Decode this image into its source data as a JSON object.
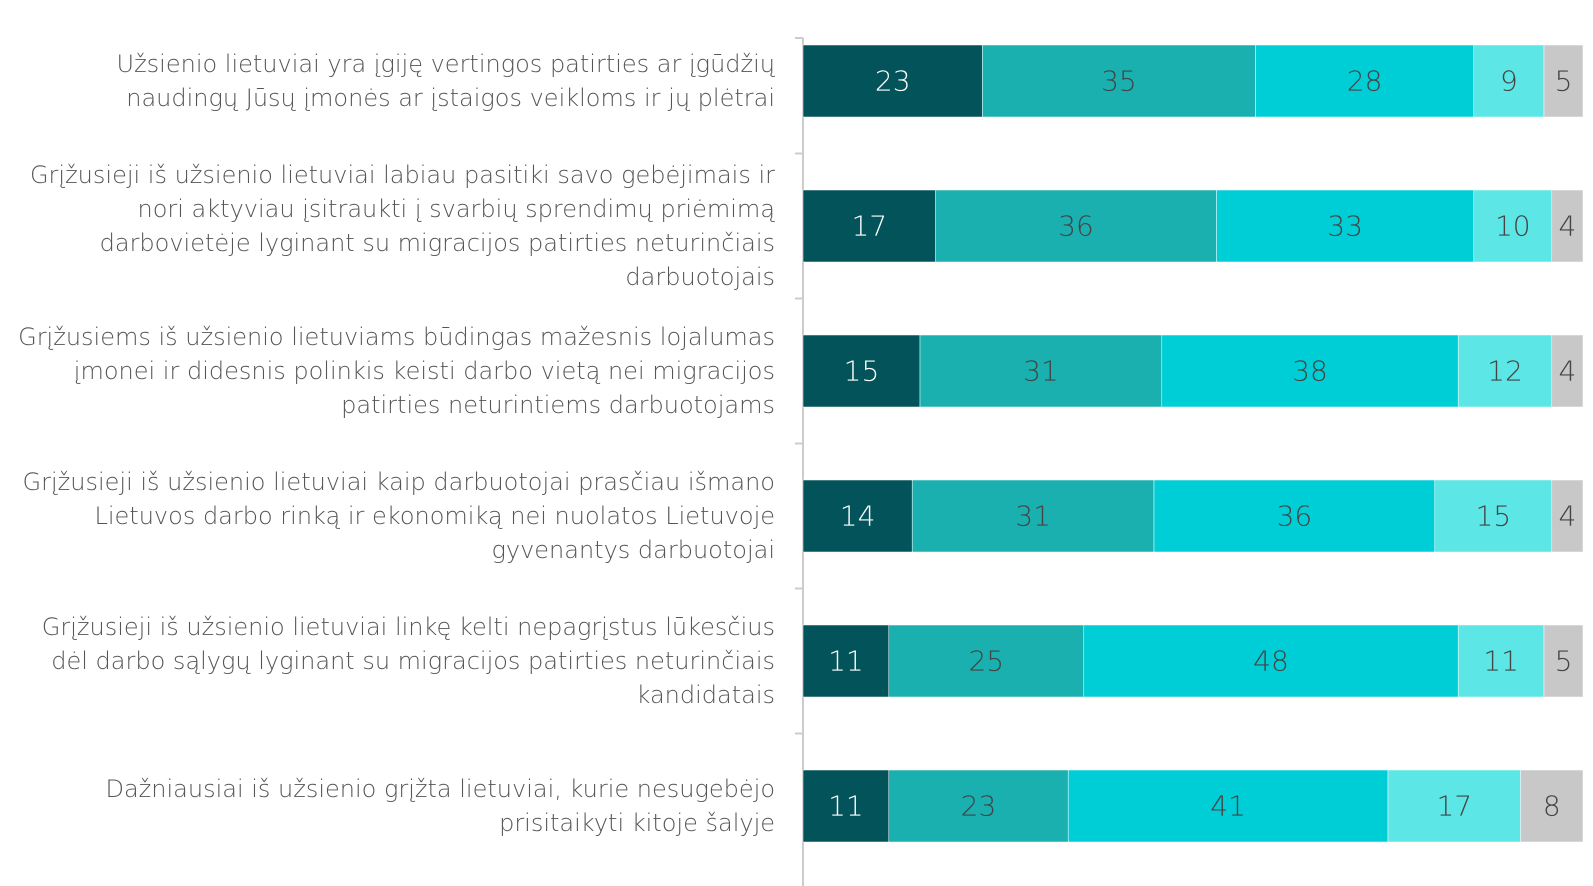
{
  "chart_data": {
    "type": "stacked-barh",
    "categories": [
      "Užsienio lietuviai yra įgiję vertingos patirties ar įgūdžių naudingų Jūsų įmonės ar įstaigos veikloms ir jų plėtrai",
      "Grįžusieji iš užsienio lietuviai labiau pasitiki savo gebėjimais ir nori aktyviau įsitraukti į svarbių sprendimų priėmimą darbovietėje lyginant su migracijos patirties neturinčiais darbuotojais",
      "Grįžusiems iš užsienio lietuviams būdingas mažesnis lojalumas įmonei ir didesnis polinkis keisti darbo vietą nei migracijos patirties neturintiems darbuotojams",
      "Grįžusieji iš užsienio lietuviai kaip darbuotojai prasčiau išmano Lietuvos darbo rinką ir ekonomiką nei nuolatos Lietuvoje gyvenantys darbuotojai",
      "Grįžusieji iš užsienio lietuviai linkę kelti nepagrįstus lūkesčius dėl darbo sąlygų lyginant su migracijos patirties neturinčiais kandidatais",
      "Dažniausiai iš užsienio grįžta lietuviai, kurie nesugebėjo prisitaikyti kitoje šalyje"
    ],
    "series": [
      {
        "color": "#03535a",
        "values": [
          23,
          17,
          15,
          14,
          11,
          11
        ]
      },
      {
        "color": "#1ab0b0",
        "values": [
          35,
          36,
          31,
          31,
          25,
          23
        ]
      },
      {
        "color": "#00ced6",
        "values": [
          28,
          33,
          38,
          36,
          48,
          41
        ]
      },
      {
        "color": "#5ce6e6",
        "values": [
          9,
          10,
          12,
          15,
          11,
          17
        ]
      },
      {
        "color": "#c8c8c8",
        "values": [
          5,
          4,
          4,
          4,
          5,
          8
        ]
      }
    ],
    "xlim": [
      0,
      100
    ]
  }
}
